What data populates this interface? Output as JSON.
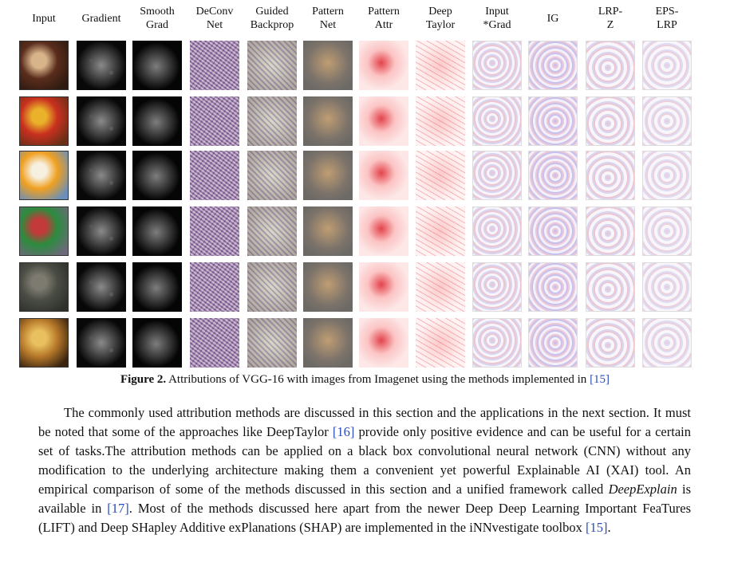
{
  "figure": {
    "column_headers": [
      [
        "Input"
      ],
      [
        "Gradient"
      ],
      [
        "Smooth",
        "Grad"
      ],
      [
        "DeConv",
        "Net"
      ],
      [
        "Guided",
        "Backprop"
      ],
      [
        "Pattern",
        "Net"
      ],
      [
        "Pattern",
        "Attr"
      ],
      [
        "Deep",
        "Taylor"
      ],
      [
        "Input",
        "*Grad"
      ],
      [
        "IG"
      ],
      [
        "LRP-",
        "Z"
      ],
      [
        "EPS-",
        "LRP"
      ]
    ],
    "rows": [
      {
        "subject": "dessert plate"
      },
      {
        "subject": "peppers"
      },
      {
        "subject": "ice cream"
      },
      {
        "subject": "go-kart"
      },
      {
        "subject": "insect on foliage"
      },
      {
        "subject": "food dish"
      }
    ],
    "input_colors": [
      [
        "#5a2d1c",
        "#d8b48a",
        "#2e1a10"
      ],
      [
        "#c9301f",
        "#e9b22a",
        "#6a2f18"
      ],
      [
        "#f0a020",
        "#f6f0e0",
        "#6b8fb8"
      ],
      [
        "#2b8c3e",
        "#c23a3a",
        "#6a6a78"
      ],
      [
        "#4a4d44",
        "#7d7a70",
        "#2e302b"
      ],
      [
        "#b87a2a",
        "#e8c060",
        "#3a2410"
      ]
    ]
  },
  "caption": {
    "label": "Figure 2.",
    "text": " Attributions of VGG-16 with images from Imagenet using the methods implemented in ",
    "ref": "[15]"
  },
  "paragraph": {
    "t1": "The commonly used attribution methods are discussed in this section and the applications in the next section. It must be noted that some of the approaches like DeepTaylor ",
    "r1": "[16]",
    "t2": " provide only positive evidence and can be useful for a certain set of tasks.The attribution methods can be applied on a black box convolutional neural network (CNN) without any modification to the underlying architecture making them a convenient yet powerful Explainable AI (XAI) tool. An empirical comparison of some of the methods discussed in this section and a unified framework called ",
    "em": "DeepExplain",
    "t3": " is available in ",
    "r2": "[17]",
    "t4": ". Most of the methods discussed here apart from the newer Deep Deep Learning Important FeaTures (LIFT) and Deep SHapley Additive exPlanations (SHAP) are implemented in the iNNvestigate toolbox ",
    "r3": "[15]",
    "t5": "."
  }
}
